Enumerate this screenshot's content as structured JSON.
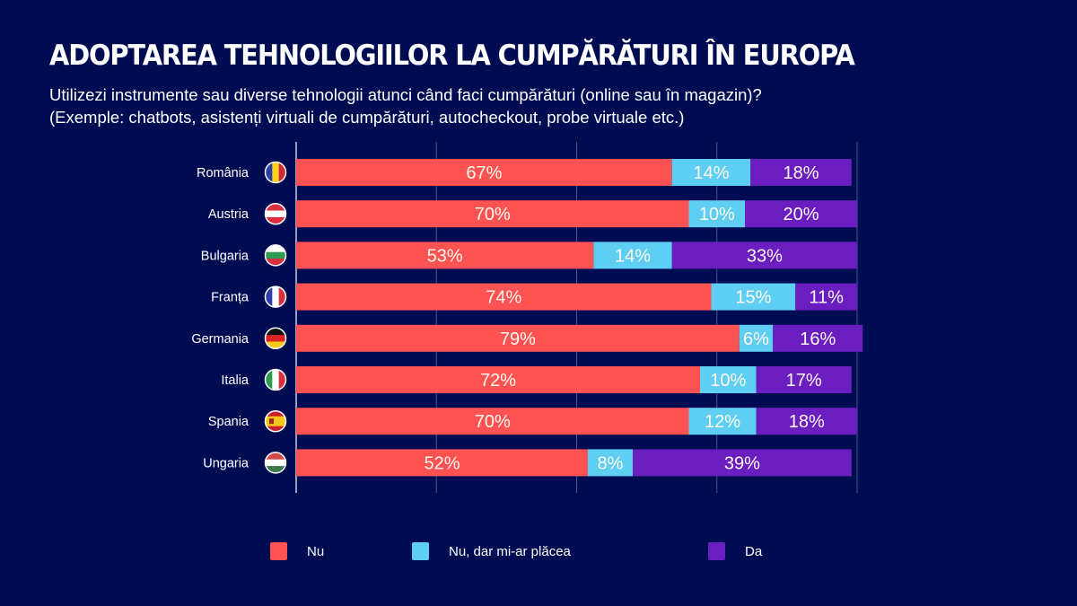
{
  "header": {
    "title": "ADOPTAREA TEHNOLOGIILOR LA CUMPĂRĂTURI ÎN EUROPA",
    "subtitle_line1": "Utilizezi instrumente sau diverse tehnologii atunci când faci cumpărături (online sau în magazin)?",
    "subtitle_line2": "(Exemple: chatbots, asistenți virtuali de cumpărături, autocheckout, probe virtuale etc.)"
  },
  "colors": {
    "background": "#000c52",
    "nu": "#ff5252",
    "nu_dar": "#5ecef3",
    "da": "#6a1ec0",
    "grid": "#4a5290"
  },
  "chart_data": {
    "type": "bar",
    "orientation": "horizontal",
    "stacked": true,
    "title": "ADOPTAREA TEHNOLOGIILOR LA CUMPĂRĂTURI ÎN EUROPA",
    "xlabel": "",
    "ylabel": "",
    "xlim": [
      0,
      100
    ],
    "grid": true,
    "grid_ticks": [
      0,
      25,
      50,
      75,
      100
    ],
    "tick_labels_visible": false,
    "legend_position": "bottom",
    "categories": [
      "România",
      "Austria",
      "Bulgaria",
      "Franța",
      "Germania",
      "Italia",
      "Spania",
      "Ungaria"
    ],
    "flags": [
      "romania-flag",
      "austria-flag",
      "bulgaria-flag",
      "france-flag",
      "germany-flag",
      "italy-flag",
      "spain-flag",
      "hungary-flag"
    ],
    "series": [
      {
        "name": "Nu",
        "color": "#ff5252",
        "values": [
          67,
          70,
          53,
          74,
          79,
          72,
          70,
          52
        ]
      },
      {
        "name": "Nu, dar mi-ar plăcea",
        "color": "#5ecef3",
        "values": [
          14,
          10,
          14,
          15,
          6,
          10,
          12,
          8
        ]
      },
      {
        "name": "Da",
        "color": "#6a1ec0",
        "values": [
          18,
          20,
          33,
          11,
          16,
          17,
          18,
          39
        ]
      }
    ],
    "value_label_suffix": "%"
  },
  "legend": [
    {
      "label": "Nu",
      "color": "#ff5252"
    },
    {
      "label": "Nu, dar mi-ar plăcea",
      "color": "#5ecef3"
    },
    {
      "label": "Da",
      "color": "#6a1ec0"
    }
  ]
}
